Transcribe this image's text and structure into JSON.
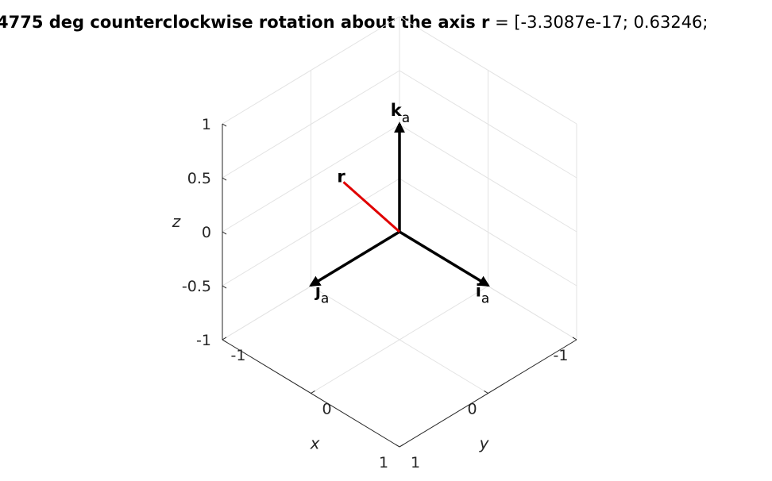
{
  "chart_data": {
    "type": "3d-vector-plot",
    "title": {
      "prefix": "4775 deg counterclockwise rotation about the axis ",
      "bold_symbol": "r",
      "suffix": " = [-3.3087e-17; 0.63246;"
    },
    "axes": {
      "x": {
        "label": "x",
        "lim": [
          -1,
          1
        ],
        "ticks": [
          "-1",
          "0",
          "1"
        ]
      },
      "y": {
        "label": "y",
        "lim": [
          -1,
          1
        ],
        "ticks": [
          "-1",
          "0",
          "1"
        ]
      },
      "z": {
        "label": "z",
        "lim": [
          -1,
          1
        ],
        "ticks": [
          "-1",
          "-0.5",
          "0",
          "0.5",
          "1"
        ]
      }
    },
    "grid": true,
    "vectors": [
      {
        "name": "i",
        "subscript": "a",
        "components": [
          1,
          0,
          0
        ],
        "color": "#000000"
      },
      {
        "name": "j",
        "subscript": "a",
        "components": [
          0,
          1,
          0
        ],
        "color": "#000000"
      },
      {
        "name": "k",
        "subscript": "a",
        "components": [
          0,
          0,
          1
        ],
        "color": "#000000"
      },
      {
        "name": "r",
        "subscript": "",
        "components": [
          -3.3087e-17,
          0.63246,
          0.7746
        ],
        "color": "#e00000"
      }
    ]
  }
}
